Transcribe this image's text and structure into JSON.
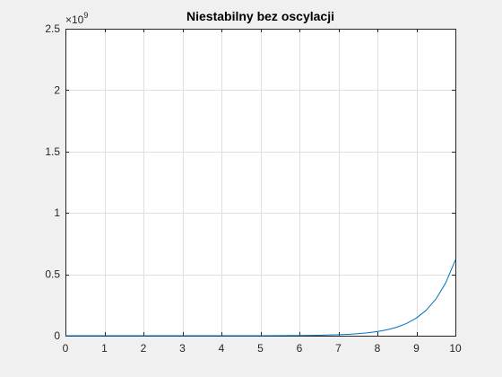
{
  "chart_data": {
    "type": "line",
    "title": "Niestabilny bez oscylacji",
    "xlabel": "",
    "ylabel": "",
    "xlim": [
      0,
      10
    ],
    "ylim": [
      0,
      2.5
    ],
    "x_ticks": [
      0,
      1,
      2,
      3,
      4,
      5,
      6,
      7,
      8,
      9,
      10
    ],
    "x_tick_labels": [
      "0",
      "1",
      "2",
      "3",
      "4",
      "5",
      "6",
      "7",
      "8",
      "9",
      "10"
    ],
    "y_ticks": [
      0,
      0.5,
      1,
      1.5,
      2,
      2.5
    ],
    "y_tick_labels": [
      "0",
      "0.5",
      "1",
      "1.5",
      "2",
      "2.5"
    ],
    "y_exponent": {
      "base": "×10",
      "power": "9"
    },
    "y_multiplier": 1000000000,
    "grid": true,
    "line_color": "#0072BD",
    "series": [
      {
        "x": [
          0,
          1,
          2,
          3,
          4,
          5,
          6,
          6.5,
          7,
          7.25,
          7.5,
          7.75,
          8,
          8.25,
          8.5,
          8.75,
          9,
          9.25,
          9.5,
          9.75,
          10
        ],
        "values": [
          0,
          0,
          0,
          0,
          0.0001,
          0.0004,
          0.0018,
          0.0038,
          0.0078,
          0.0113,
          0.0162,
          0.0234,
          0.0336,
          0.0483,
          0.0695,
          0.1,
          0.144,
          0.207,
          0.298,
          0.429,
          0.617
        ]
      }
    ]
  }
}
